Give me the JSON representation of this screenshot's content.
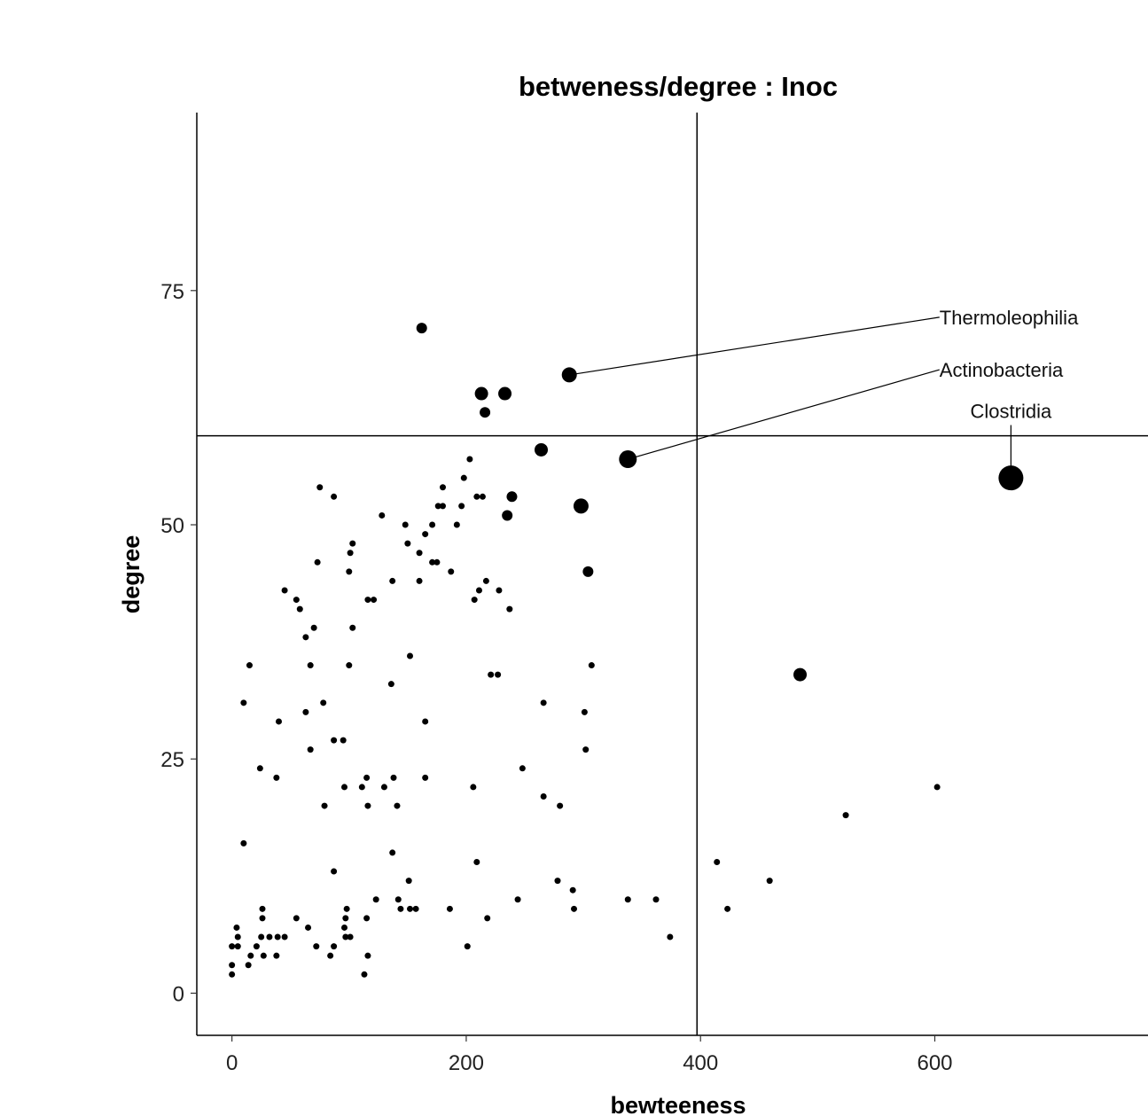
{
  "chart_data": {
    "type": "scatter",
    "title": "betweness/degree : Inoc",
    "xlabel": "bewteeness",
    "ylabel": "degree",
    "xlim": [
      -30,
      782
    ],
    "ylim": [
      -4.5,
      94
    ],
    "x_ticks": [
      0,
      200,
      400,
      600
    ],
    "y_ticks": [
      0,
      25,
      50,
      75
    ],
    "x_tick_labels": [
      "0",
      "200",
      "400",
      "600"
    ],
    "y_tick_labels": [
      "0",
      "25",
      "50",
      "75"
    ],
    "grid": false,
    "legend": "none",
    "reference_lines": {
      "vline_x": 397,
      "hline_y": 59.5
    },
    "annotations": [
      {
        "label": "Thermoleophilia",
        "point": [
          288,
          66
        ],
        "label_at": [
          604,
          71.4
        ],
        "anchor": "start"
      },
      {
        "label": "Actinobacteria",
        "point": [
          338,
          57
        ],
        "label_at": [
          604,
          65.8
        ],
        "anchor": "start"
      },
      {
        "label": "Clostridia",
        "point": [
          665,
          55
        ],
        "label_at": [
          665,
          61.4
        ],
        "anchor": "middle"
      }
    ],
    "points": [
      [
        162,
        71,
        1.5
      ],
      [
        213,
        64,
        2
      ],
      [
        233,
        64,
        2
      ],
      [
        216,
        62,
        1.5
      ],
      [
        288,
        66,
        2.5
      ],
      [
        264,
        58,
        2
      ],
      [
        338,
        57,
        3
      ],
      [
        239,
        53,
        1.5
      ],
      [
        235,
        51,
        1.5
      ],
      [
        298,
        52,
        2.5
      ],
      [
        304,
        45,
        1.5
      ],
      [
        665,
        55,
        5
      ],
      [
        485,
        34,
        2
      ],
      [
        203,
        57,
        1
      ],
      [
        198,
        55,
        1
      ],
      [
        180,
        54,
        1
      ],
      [
        75,
        54,
        1
      ],
      [
        87,
        53,
        1
      ],
      [
        180,
        52,
        1
      ],
      [
        176,
        52,
        1
      ],
      [
        196,
        52,
        1
      ],
      [
        209,
        53,
        1
      ],
      [
        214,
        53,
        1
      ],
      [
        128,
        51,
        1
      ],
      [
        148,
        50,
        1
      ],
      [
        171,
        50,
        1
      ],
      [
        192,
        50,
        1
      ],
      [
        165,
        49,
        1
      ],
      [
        103,
        48,
        1
      ],
      [
        150,
        48,
        1
      ],
      [
        160,
        47,
        1
      ],
      [
        101,
        47,
        1
      ],
      [
        175,
        46,
        1
      ],
      [
        171,
        46,
        1
      ],
      [
        73,
        46,
        1
      ],
      [
        100,
        45,
        1
      ],
      [
        187,
        45,
        1
      ],
      [
        160,
        44,
        1
      ],
      [
        137,
        44,
        1
      ],
      [
        217,
        44,
        1
      ],
      [
        211,
        43,
        1
      ],
      [
        228,
        43,
        1
      ],
      [
        45,
        43,
        1
      ],
      [
        55,
        42,
        1
      ],
      [
        116,
        42,
        1
      ],
      [
        121,
        42,
        1
      ],
      [
        207,
        42,
        1
      ],
      [
        237,
        41,
        1
      ],
      [
        58,
        41,
        1
      ],
      [
        103,
        39,
        1
      ],
      [
        70,
        39,
        1
      ],
      [
        63,
        38,
        1
      ],
      [
        152,
        36,
        1
      ],
      [
        15,
        35,
        1
      ],
      [
        67,
        35,
        1
      ],
      [
        100,
        35,
        1
      ],
      [
        307,
        35,
        1
      ],
      [
        221,
        34,
        1
      ],
      [
        227,
        34,
        1
      ],
      [
        136,
        33,
        1
      ],
      [
        10,
        31,
        1
      ],
      [
        78,
        31,
        1
      ],
      [
        266,
        31,
        1
      ],
      [
        63,
        30,
        1
      ],
      [
        301,
        30,
        1
      ],
      [
        40,
        29,
        1
      ],
      [
        165,
        29,
        1
      ],
      [
        87,
        27,
        1
      ],
      [
        95,
        27,
        1
      ],
      [
        67,
        26,
        1
      ],
      [
        302,
        26,
        1
      ],
      [
        24,
        24,
        1
      ],
      [
        248,
        24,
        1
      ],
      [
        38,
        23,
        1
      ],
      [
        115,
        23,
        1
      ],
      [
        138,
        23,
        1
      ],
      [
        165,
        23,
        1
      ],
      [
        96,
        22,
        1
      ],
      [
        111,
        22,
        1
      ],
      [
        130,
        22,
        1
      ],
      [
        206,
        22,
        1
      ],
      [
        602,
        22,
        1
      ],
      [
        266,
        21,
        1
      ],
      [
        79,
        20,
        1
      ],
      [
        116,
        20,
        1
      ],
      [
        141,
        20,
        1
      ],
      [
        280,
        20,
        1
      ],
      [
        524,
        19,
        1
      ],
      [
        10,
        16,
        1
      ],
      [
        137,
        15,
        1
      ],
      [
        209,
        14,
        1
      ],
      [
        414,
        14,
        1
      ],
      [
        87,
        13,
        1
      ],
      [
        151,
        12,
        1
      ],
      [
        278,
        12,
        1
      ],
      [
        459,
        12,
        1
      ],
      [
        291,
        11,
        1
      ],
      [
        123,
        10,
        1
      ],
      [
        142,
        10,
        1
      ],
      [
        244,
        10,
        1
      ],
      [
        338,
        10,
        1
      ],
      [
        362,
        10,
        1
      ],
      [
        26,
        9,
        1
      ],
      [
        98,
        9,
        1
      ],
      [
        144,
        9,
        1
      ],
      [
        152,
        9,
        1
      ],
      [
        157,
        9,
        1
      ],
      [
        186,
        9,
        1
      ],
      [
        292,
        9,
        1
      ],
      [
        423,
        9,
        1
      ],
      [
        26,
        8,
        1
      ],
      [
        55,
        8,
        1
      ],
      [
        97,
        8,
        1
      ],
      [
        115,
        8,
        1
      ],
      [
        218,
        8,
        1
      ],
      [
        4,
        7,
        1
      ],
      [
        65,
        7,
        1
      ],
      [
        96,
        7,
        1
      ],
      [
        5,
        6,
        1
      ],
      [
        25,
        6,
        1
      ],
      [
        32,
        6,
        1
      ],
      [
        39,
        6,
        1
      ],
      [
        45,
        6,
        1
      ],
      [
        97,
        6,
        1
      ],
      [
        101,
        6,
        1
      ],
      [
        374,
        6,
        1
      ],
      [
        0,
        5,
        1
      ],
      [
        5,
        5,
        1
      ],
      [
        21,
        5,
        1
      ],
      [
        72,
        5,
        1
      ],
      [
        87,
        5,
        1
      ],
      [
        201,
        5,
        1
      ],
      [
        16,
        4,
        1
      ],
      [
        27,
        4,
        1
      ],
      [
        38,
        4,
        1
      ],
      [
        84,
        4,
        1
      ],
      [
        116,
        4,
        1
      ],
      [
        0,
        3,
        1
      ],
      [
        14,
        3,
        1
      ],
      [
        0,
        2,
        1
      ],
      [
        113,
        2,
        1
      ]
    ]
  }
}
